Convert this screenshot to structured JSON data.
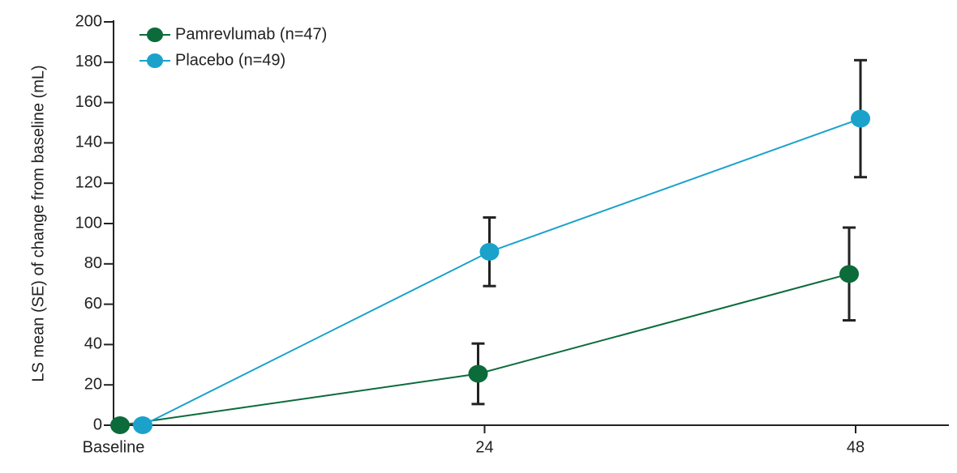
{
  "chart_data": {
    "type": "line",
    "ylabel": "LS mean (SE) of change from baseline (mL)",
    "categories": [
      "Baseline",
      "24",
      "48"
    ],
    "series": [
      {
        "name": "Pamrevlumab (n=47)",
        "color": "#0b6b3a",
        "values": [
          0,
          25.5,
          75
        ],
        "errors": [
          0,
          15,
          23
        ]
      },
      {
        "name": "Placebo (n=49)",
        "color": "#1ba2cb",
        "values": [
          0,
          86,
          152
        ],
        "errors": [
          0,
          17,
          29
        ]
      }
    ],
    "ylim": [
      0,
      200
    ],
    "yticks": [
      0,
      20,
      40,
      60,
      80,
      100,
      120,
      140,
      160,
      180,
      200
    ],
    "legend": "upper left"
  }
}
